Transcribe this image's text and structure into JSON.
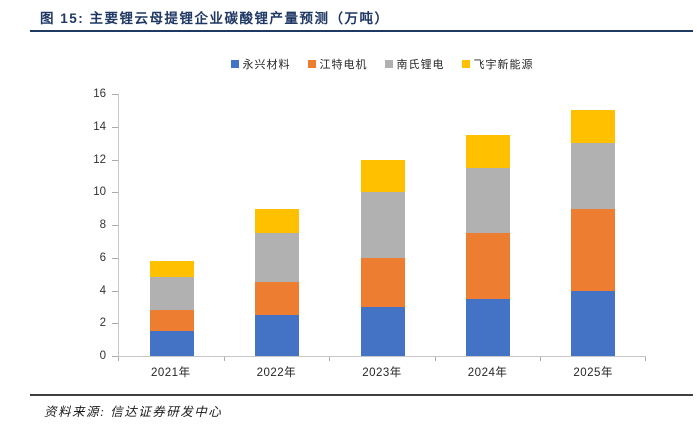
{
  "figure": {
    "title": "图 15: 主要锂云母提锂企业碳酸锂产量预测（万吨）",
    "source": "资料来源: 信达证券研发中心"
  },
  "colors": {
    "title_navy": "#1F3864",
    "axis_line": "#C6C6C6",
    "tick": "#ABABAB",
    "series_blue": "#4472C4",
    "series_orange": "#ED7D31",
    "series_gray": "#B1B1B1",
    "series_yellow": "#FFC000"
  },
  "chart_data": {
    "type": "bar",
    "stacked": true,
    "title": "主要锂云母提锂企业碳酸锂产量预测（万吨）",
    "unit": "万吨",
    "categories": [
      "2021年",
      "2022年",
      "2023年",
      "2024年",
      "2025年"
    ],
    "series": [
      {
        "name": "永兴材料",
        "color": "#4472C4",
        "values": [
          1.5,
          2.5,
          3.0,
          3.5,
          4.0
        ]
      },
      {
        "name": "江特电机",
        "color": "#ED7D31",
        "values": [
          1.3,
          2.0,
          3.0,
          4.0,
          5.0
        ]
      },
      {
        "name": "南氏锂电",
        "color": "#B1B1B1",
        "values": [
          2.0,
          3.0,
          4.0,
          4.0,
          4.0
        ]
      },
      {
        "name": "飞宇新能源",
        "color": "#FFC000",
        "values": [
          1.0,
          1.5,
          2.0,
          2.0,
          2.0
        ]
      }
    ],
    "totals": [
      5.8,
      9.0,
      12.0,
      13.5,
      15.0
    ],
    "ylim": [
      0,
      16
    ],
    "yticks": [
      0,
      2,
      4,
      6,
      8,
      10,
      12,
      14,
      16
    ],
    "xlabel": "",
    "ylabel": "",
    "grid": false,
    "legend_position": "top"
  }
}
